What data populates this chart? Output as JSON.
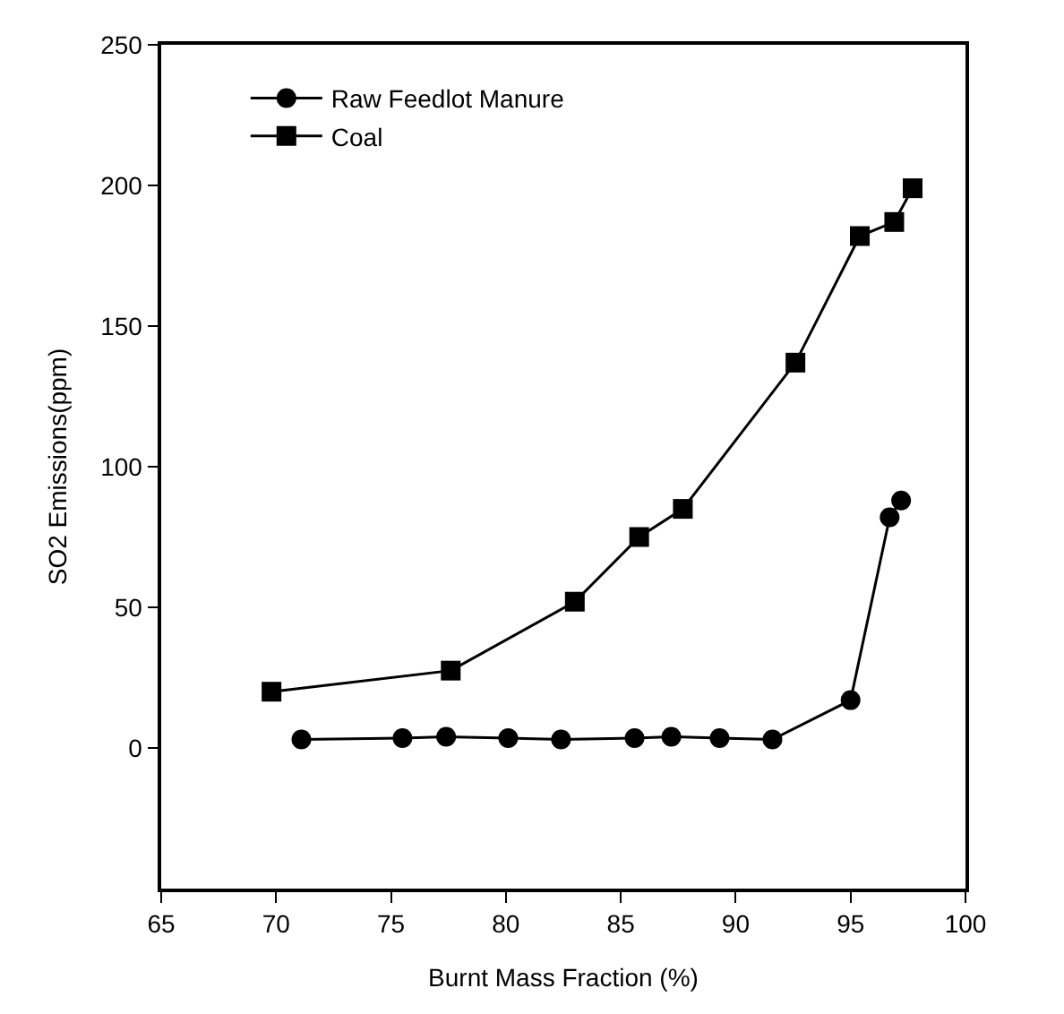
{
  "chart_data": {
    "type": "line",
    "xlabel": "Burnt Mass Fraction (%)",
    "ylabel": "SO2 Emissions(ppm)",
    "xlim": [
      65,
      100
    ],
    "xticks": [
      65,
      70,
      75,
      80,
      85,
      90,
      95,
      100
    ],
    "ylim": [
      -50,
      250
    ],
    "yticks": [
      0,
      50,
      100,
      150,
      200,
      250
    ],
    "legend": "top left",
    "series": [
      {
        "name": "Raw Feedlot Manure",
        "color": "#000000",
        "marker": "circle",
        "x": [
          71.1,
          75.5,
          77.4,
          80.1,
          82.4,
          85.6,
          87.2,
          89.3,
          91.6,
          95.0,
          96.7,
          97.2
        ],
        "values": [
          3,
          3.5,
          4,
          3.5,
          3,
          3.5,
          4,
          3.5,
          3,
          17,
          82,
          88
        ]
      },
      {
        "name": "Coal",
        "color": "#000000",
        "marker": "square",
        "x": [
          69.8,
          77.6,
          83.0,
          85.8,
          87.7,
          92.6,
          95.4,
          96.9,
          97.7
        ],
        "values": [
          20,
          27.5,
          52,
          75,
          85,
          137,
          182,
          187,
          199
        ]
      }
    ]
  }
}
